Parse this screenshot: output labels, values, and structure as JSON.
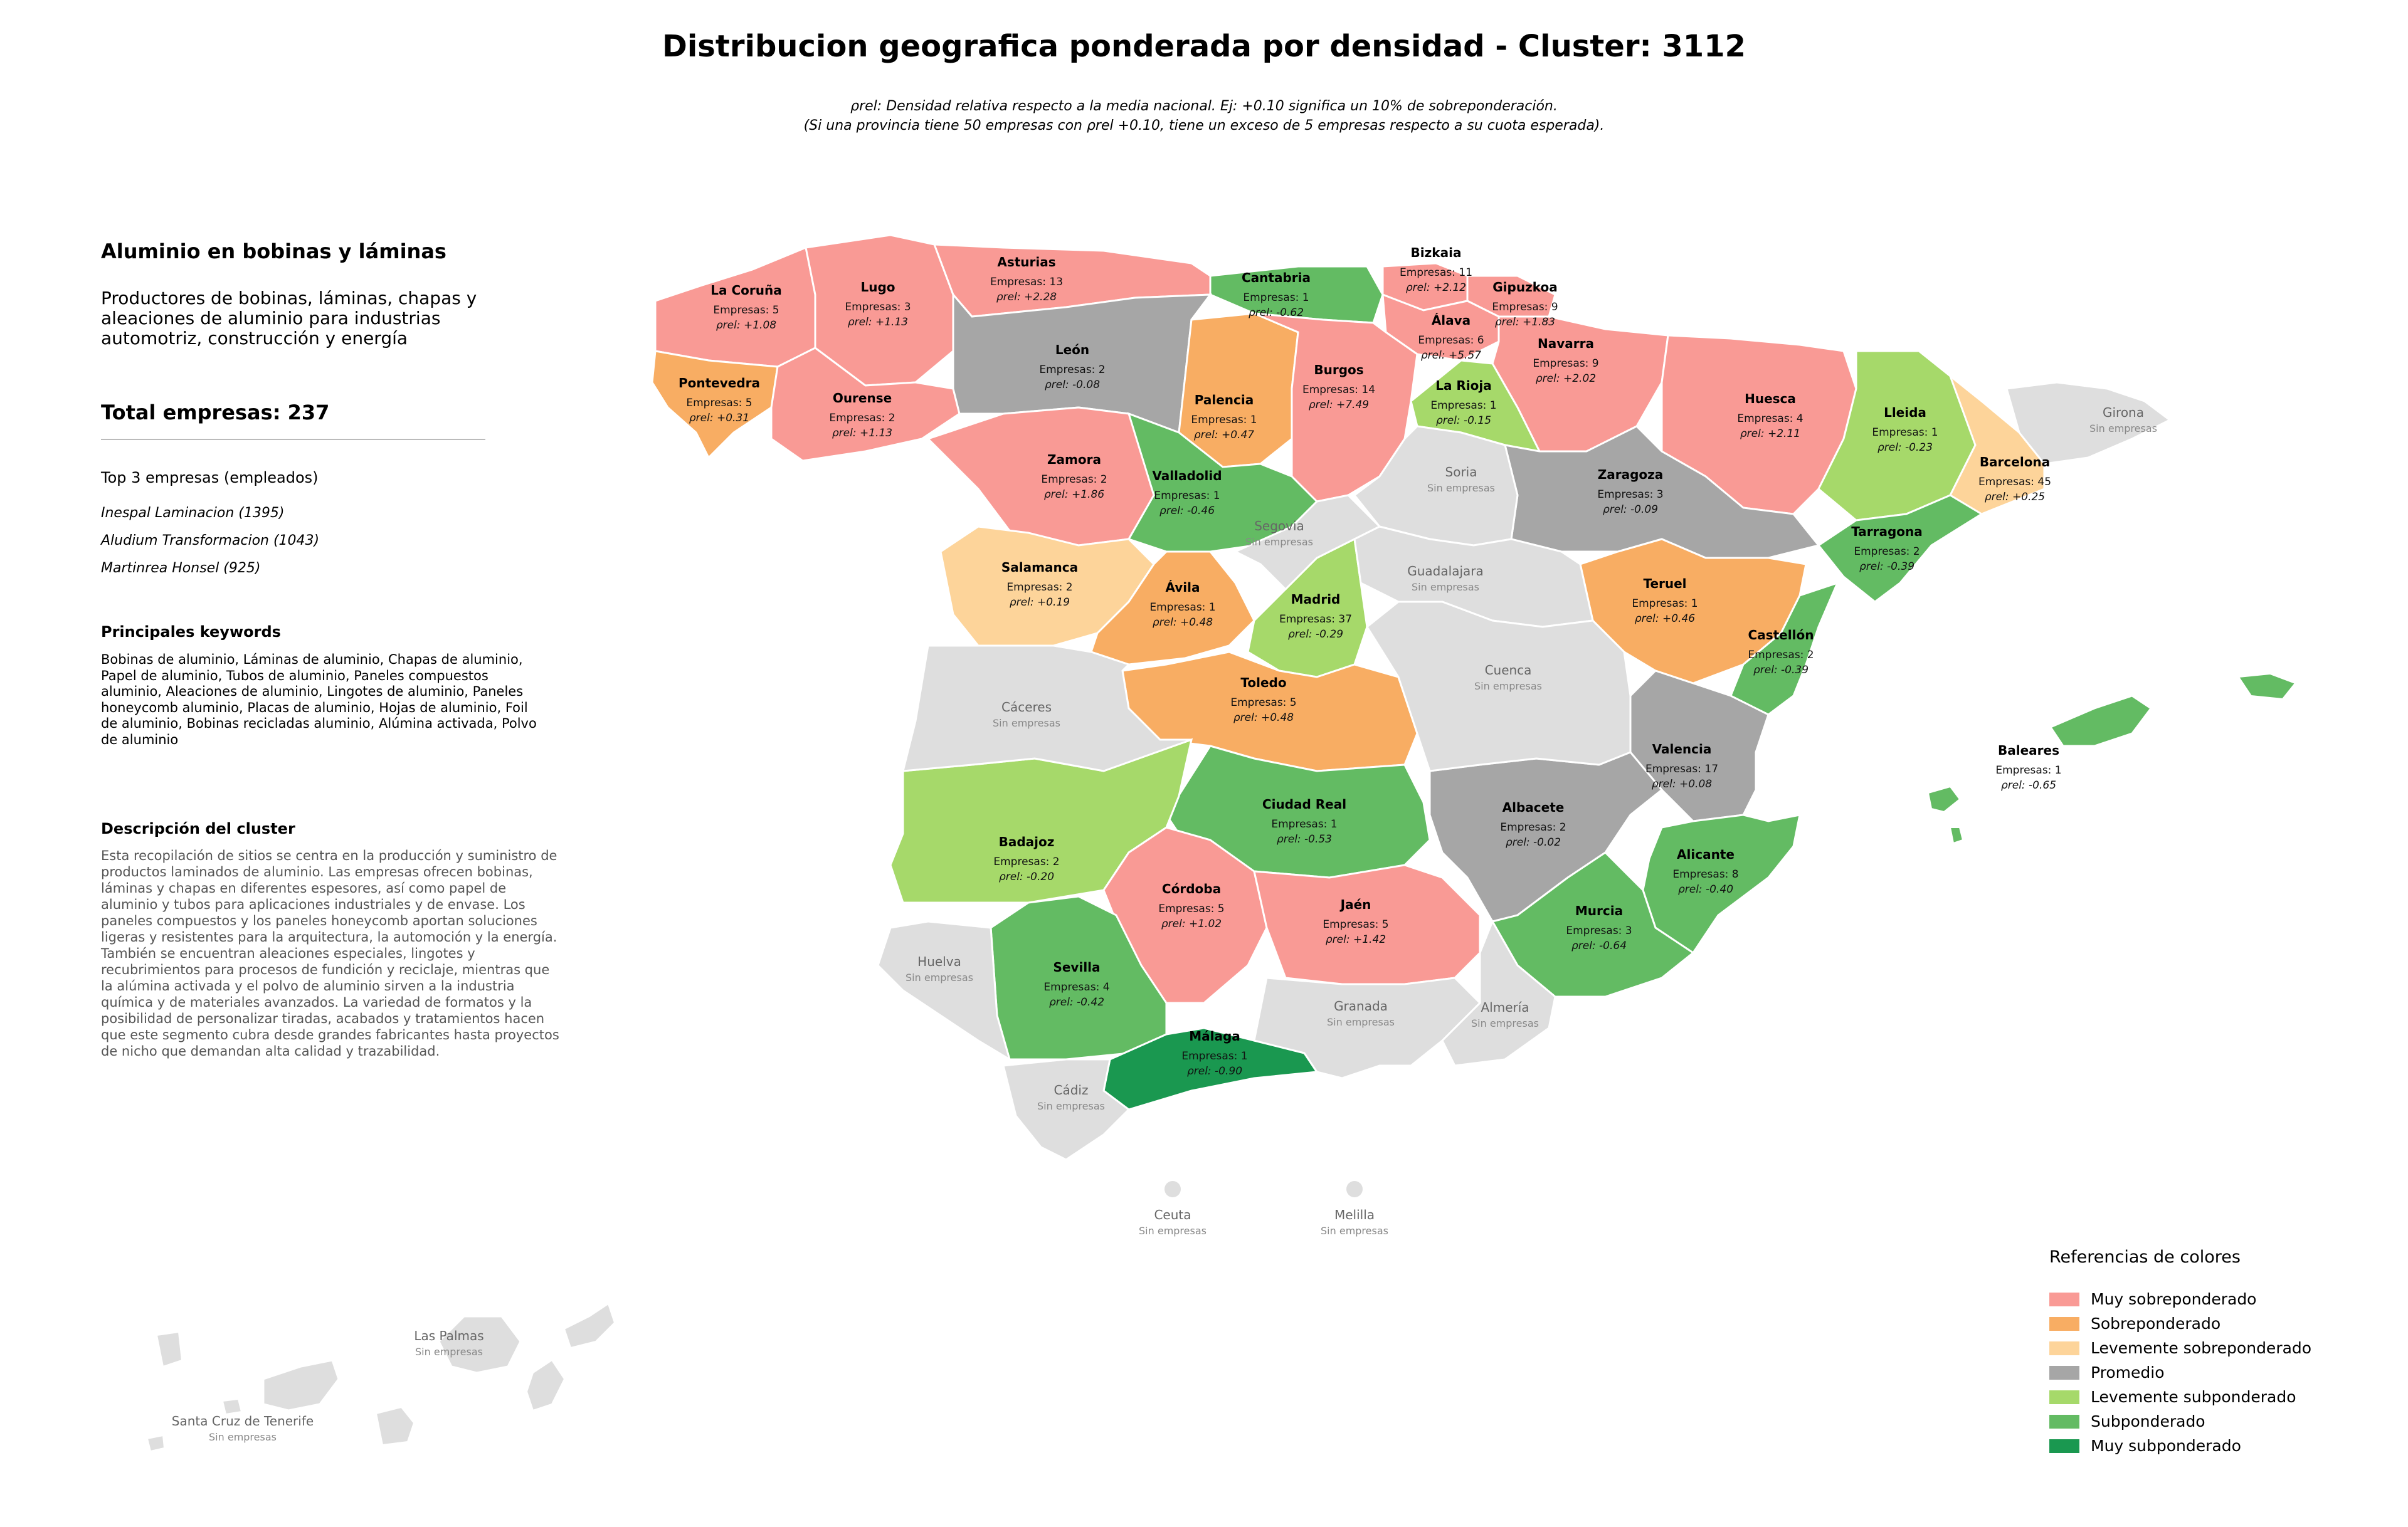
{
  "title": "Distribucion geografica ponderada por densidad - Cluster: 3112",
  "subtitle": {
    "line1": "ρrel: Densidad relativa respecto a la media nacional. Ej: +0.10 significa un 10% de sobreponderación.",
    "line2": "(Si una provincia tiene 50 empresas con ρrel +0.10, tiene un exceso de 5 empresas respecto a su cuota esperada)."
  },
  "sidebar": {
    "heading": "Aluminio en bobinas y láminas",
    "description": "Productores de bobinas, láminas, chapas y aleaciones de aluminio para industrias automotriz, construcción y energía",
    "total": "Total empresas: 237",
    "top_heading": "Top 3 empresas (empleados)",
    "top_companies": [
      "Inespal Laminacion (1395)",
      "Aludium Transformacion (1043)",
      "Martinrea Honsel (925)"
    ],
    "keywords_heading": "Principales keywords",
    "keywords": "Bobinas de aluminio, Láminas de aluminio, Chapas de aluminio, Papel de aluminio, Tubos de aluminio, Paneles compuestos aluminio, Aleaciones de aluminio, Lingotes de aluminio, Paneles honeycomb aluminio, Placas de aluminio, Hojas de aluminio, Foil de aluminio, Bobinas recicladas aluminio, Alúmina activada, Polvo de aluminio",
    "cluster_heading": "Descripción del cluster",
    "cluster_description": "Esta recopilación de sitios se centra en la producción y suministro de productos laminados de aluminio. Las empresas ofrecen bobinas, láminas y chapas en diferentes espesores, así como papel de aluminio y tubos para aplicaciones industriales y de envase. Los paneles compuestos y los paneles honeycomb aportan soluciones ligeras y resistentes para la arquitectura, la automoción y la energía. También se encuentran aleaciones especiales, lingotes y recubrimientos para procesos de fundición y reciclaje, mientras que la alúmina activada y el polvo de aluminio sirven a la industria química y de materiales avanzados. La variedad de formatos y la posibilidad de personalizar tiradas, acabados y tratamientos hacen que este segmento cubra desde grandes fabricantes hasta proyectos de nicho que demandan alta calidad y trazabilidad."
  },
  "legend": {
    "title": "Referencias de colores",
    "items": [
      {
        "label": "Muy sobreponderado",
        "color": "#f99a95"
      },
      {
        "label": "Sobreponderado",
        "color": "#f8ad63"
      },
      {
        "label": "Levemente sobreponderado",
        "color": "#fdd49a"
      },
      {
        "label": "Promedio",
        "color": "#a6a6a6"
      },
      {
        "label": "Levemente subponderado",
        "color": "#a6d96a"
      },
      {
        "label": "Subponderado",
        "color": "#63bb63"
      },
      {
        "label": "Muy subponderado",
        "color": "#1a9850"
      }
    ]
  },
  "no_data_color": "#dedede",
  "empresas_prefix": "Empresas: ",
  "rho_prefix": "ρrel: ",
  "no_companies_label": "Sin empresas",
  "provinces": [
    {
      "name": "La Coruña",
      "empresas": 5,
      "rho": "+1.08",
      "category": 0
    },
    {
      "name": "Lugo",
      "empresas": 3,
      "rho": "+1.13",
      "category": 0
    },
    {
      "name": "Asturias",
      "empresas": 13,
      "rho": "+2.28",
      "category": 0
    },
    {
      "name": "Cantabria",
      "empresas": 1,
      "rho": "-0.62",
      "category": 5
    },
    {
      "name": "Bizkaia",
      "empresas": 11,
      "rho": "+2.12",
      "category": 0
    },
    {
      "name": "Gipuzkoa",
      "empresas": 9,
      "rho": "+1.83",
      "category": 0
    },
    {
      "name": "Álava",
      "empresas": 6,
      "rho": "+5.57",
      "category": 0
    },
    {
      "name": "Navarra",
      "empresas": 9,
      "rho": "+2.02",
      "category": 0
    },
    {
      "name": "Pontevedra",
      "empresas": 5,
      "rho": "+0.31",
      "category": 1
    },
    {
      "name": "Ourense",
      "empresas": 2,
      "rho": "+1.13",
      "category": 0
    },
    {
      "name": "León",
      "empresas": 2,
      "rho": "-0.08",
      "category": 3
    },
    {
      "name": "Palencia",
      "empresas": 1,
      "rho": "+0.47",
      "category": 1
    },
    {
      "name": "Burgos",
      "empresas": 14,
      "rho": "+7.49",
      "category": 0
    },
    {
      "name": "La Rioja",
      "empresas": 1,
      "rho": "-0.15",
      "category": 4
    },
    {
      "name": "Huesca",
      "empresas": 4,
      "rho": "+2.11",
      "category": 0
    },
    {
      "name": "Lleida",
      "empresas": 1,
      "rho": "-0.23",
      "category": 4
    },
    {
      "name": "Barcelona",
      "empresas": 45,
      "rho": "+0.25",
      "category": 2
    },
    {
      "name": "Zamora",
      "empresas": 2,
      "rho": "+1.86",
      "category": 0
    },
    {
      "name": "Valladolid",
      "empresas": 1,
      "rho": "-0.46",
      "category": 5
    },
    {
      "name": "Zaragoza",
      "empresas": 3,
      "rho": "-0.09",
      "category": 3
    },
    {
      "name": "Tarragona",
      "empresas": 2,
      "rho": "-0.39",
      "category": 5
    },
    {
      "name": "Salamanca",
      "empresas": 2,
      "rho": "+0.19",
      "category": 2
    },
    {
      "name": "Ávila",
      "empresas": 1,
      "rho": "+0.48",
      "category": 1
    },
    {
      "name": "Madrid",
      "empresas": 37,
      "rho": "-0.29",
      "category": 4
    },
    {
      "name": "Teruel",
      "empresas": 1,
      "rho": "+0.46",
      "category": 1
    },
    {
      "name": "Castellón",
      "empresas": 2,
      "rho": "-0.39",
      "category": 5
    },
    {
      "name": "Toledo",
      "empresas": 5,
      "rho": "+0.48",
      "category": 1
    },
    {
      "name": "Valencia",
      "empresas": 17,
      "rho": "+0.08",
      "category": 3
    },
    {
      "name": "Baleares",
      "empresas": 1,
      "rho": "-0.65",
      "category": 5
    },
    {
      "name": "Ciudad Real",
      "empresas": 1,
      "rho": "-0.53",
      "category": 5
    },
    {
      "name": "Albacete",
      "empresas": 2,
      "rho": "-0.02",
      "category": 3
    },
    {
      "name": "Badajoz",
      "empresas": 2,
      "rho": "-0.20",
      "category": 4
    },
    {
      "name": "Alicante",
      "empresas": 8,
      "rho": "-0.40",
      "category": 5
    },
    {
      "name": "Córdoba",
      "empresas": 5,
      "rho": "+1.02",
      "category": 0
    },
    {
      "name": "Jaén",
      "empresas": 5,
      "rho": "+1.42",
      "category": 0
    },
    {
      "name": "Murcia",
      "empresas": 3,
      "rho": "-0.64",
      "category": 5
    },
    {
      "name": "Sevilla",
      "empresas": 4,
      "rho": "-0.42",
      "category": 5
    },
    {
      "name": "Málaga",
      "empresas": 1,
      "rho": "-0.90",
      "category": 6
    },
    {
      "name": "Girona",
      "empresas": null,
      "rho": null,
      "category": null
    },
    {
      "name": "Soria",
      "empresas": null,
      "rho": null,
      "category": null
    },
    {
      "name": "Segovia",
      "empresas": null,
      "rho": null,
      "category": null
    },
    {
      "name": "Guadalajara",
      "empresas": null,
      "rho": null,
      "category": null
    },
    {
      "name": "Cuenca",
      "empresas": null,
      "rho": null,
      "category": null
    },
    {
      "name": "Cáceres",
      "empresas": null,
      "rho": null,
      "category": null
    },
    {
      "name": "Huelva",
      "empresas": null,
      "rho": null,
      "category": null
    },
    {
      "name": "Granada",
      "empresas": null,
      "rho": null,
      "category": null
    },
    {
      "name": "Almería",
      "empresas": null,
      "rho": null,
      "category": null
    },
    {
      "name": "Cádiz",
      "empresas": null,
      "rho": null,
      "category": null
    },
    {
      "name": "Ceuta",
      "empresas": null,
      "rho": null,
      "category": null
    },
    {
      "name": "Melilla",
      "empresas": null,
      "rho": null,
      "category": null
    },
    {
      "name": "Las Palmas",
      "empresas": null,
      "rho": null,
      "category": null
    },
    {
      "name": "Santa Cruz de Tenerife",
      "empresas": null,
      "rho": null,
      "category": null
    }
  ]
}
